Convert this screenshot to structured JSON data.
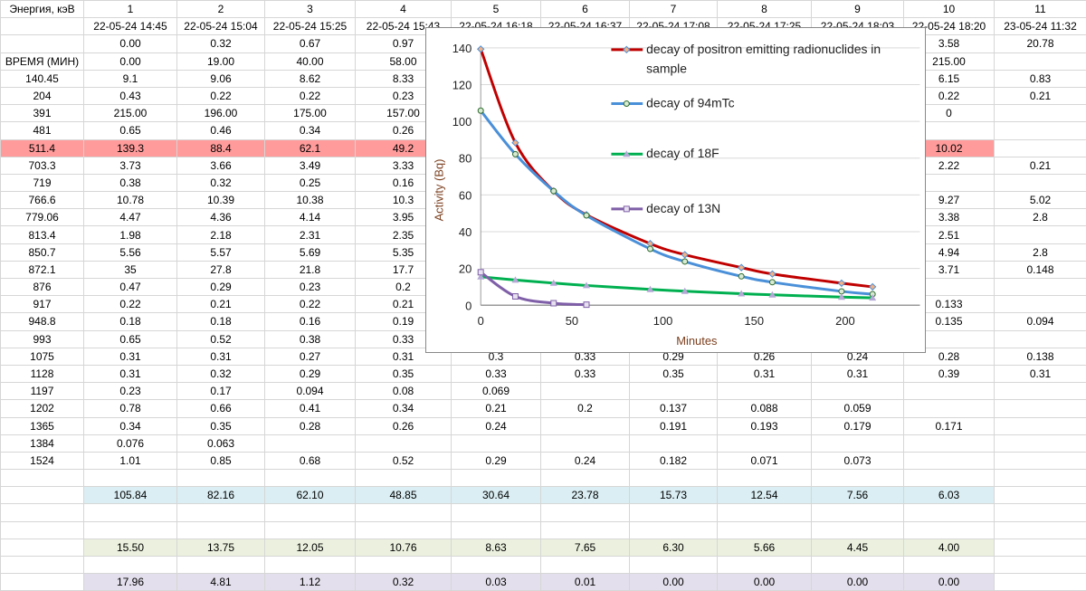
{
  "sheet": {
    "header": [
      "Энергия, кэВ",
      "1",
      "2",
      "3",
      "4",
      "5",
      "6",
      "7",
      "8",
      "9",
      "10",
      "11"
    ],
    "rows": [
      {
        "cls": "",
        "cells": [
          "",
          "22-05-24 14:45",
          "22-05-24 15:04",
          "22-05-24 15:25",
          "22-05-24 15:43",
          "22-05-24 16:18",
          "22-05-24 16:37",
          "22-05-24 17:08",
          "22-05-24 17:25",
          "22-05-24 18:03",
          "22-05-24 18:20",
          "23-05-24 11:32"
        ]
      },
      {
        "cls": "",
        "cells": [
          "",
          "0.00",
          "0.32",
          "0.67",
          "0.97",
          "",
          "",
          "",
          "",
          "",
          "3.58",
          "20.78"
        ]
      },
      {
        "cls": "",
        "cells": [
          "ВРЕМЯ (МИН)",
          "0.00",
          "19.00",
          "40.00",
          "58.00",
          "",
          "",
          "",
          "",
          "",
          "215.00",
          ""
        ]
      },
      {
        "cls": "",
        "cells": [
          "140.45",
          "9.1",
          "9.06",
          "8.62",
          "8.33",
          "",
          "",
          "",
          "",
          "",
          "6.15",
          "0.83"
        ]
      },
      {
        "cls": "",
        "cells": [
          "204",
          "0.43",
          "0.22",
          "0.22",
          "0.23",
          "",
          "",
          "",
          "",
          "",
          "0.22",
          "0.21"
        ]
      },
      {
        "cls": "",
        "cells": [
          "391",
          "215.00",
          "196.00",
          "175.00",
          "157.00",
          "",
          "",
          "",
          "",
          "",
          "0",
          ""
        ]
      },
      {
        "cls": "",
        "cells": [
          "481",
          "0.65",
          "0.46",
          "0.34",
          "0.26",
          "",
          "",
          "",
          "",
          "",
          "",
          ""
        ]
      },
      {
        "cls": "pink",
        "cells": [
          "511.4",
          "139.3",
          "88.4",
          "62.1",
          "49.2",
          "",
          "",
          "",
          "",
          "",
          "10.02",
          ""
        ]
      },
      {
        "cls": "",
        "cells": [
          "703.3",
          "3.73",
          "3.66",
          "3.49",
          "3.33",
          "",
          "",
          "",
          "",
          "",
          "2.22",
          "0.21"
        ]
      },
      {
        "cls": "",
        "cells": [
          "719",
          "0.38",
          "0.32",
          "0.25",
          "0.16",
          "",
          "",
          "",
          "",
          "",
          "",
          ""
        ]
      },
      {
        "cls": "",
        "cells": [
          "766.6",
          "10.78",
          "10.39",
          "10.38",
          "10.3",
          "",
          "",
          "",
          "",
          "",
          "9.27",
          "5.02"
        ]
      },
      {
        "cls": "",
        "cells": [
          "779.06",
          "4.47",
          "4.36",
          "4.14",
          "3.95",
          "",
          "",
          "",
          "",
          "",
          "3.38",
          "2.8"
        ]
      },
      {
        "cls": "",
        "cells": [
          "813.4",
          "1.98",
          "2.18",
          "2.31",
          "2.35",
          "",
          "",
          "",
          "",
          "",
          "2.51",
          ""
        ]
      },
      {
        "cls": "",
        "cells": [
          "850.7",
          "5.56",
          "5.57",
          "5.69",
          "5.35",
          "",
          "",
          "",
          "",
          "",
          "4.94",
          "2.8"
        ]
      },
      {
        "cls": "",
        "cells": [
          "872.1",
          "35",
          "27.8",
          "21.8",
          "17.7",
          "",
          "",
          "",
          "",
          "",
          "3.71",
          "0.148"
        ]
      },
      {
        "cls": "",
        "cells": [
          "876",
          "0.47",
          "0.29",
          "0.23",
          "0.2",
          "",
          "",
          "",
          "",
          "",
          "",
          ""
        ]
      },
      {
        "cls": "",
        "cells": [
          "917",
          "0.22",
          "0.21",
          "0.22",
          "0.21",
          "",
          "",
          "",
          "",
          "",
          "0.133",
          ""
        ]
      },
      {
        "cls": "",
        "cells": [
          "948.8",
          "0.18",
          "0.18",
          "0.16",
          "0.19",
          "",
          "",
          "",
          "",
          "",
          "0.135",
          "0.094"
        ]
      },
      {
        "cls": "",
        "cells": [
          "993",
          "0.65",
          "0.52",
          "0.38",
          "0.33",
          "",
          "",
          "",
          "",
          "",
          "",
          ""
        ]
      },
      {
        "cls": "",
        "cells": [
          "1075",
          "0.31",
          "0.31",
          "0.27",
          "0.31",
          "0.3",
          "0.33",
          "0.29",
          "0.26",
          "0.24",
          "0.28",
          "0.138"
        ]
      },
      {
        "cls": "",
        "cells": [
          "1128",
          "0.31",
          "0.32",
          "0.29",
          "0.35",
          "0.33",
          "0.33",
          "0.35",
          "0.31",
          "0.31",
          "0.39",
          "0.31"
        ]
      },
      {
        "cls": "",
        "cells": [
          "1197",
          "0.23",
          "0.17",
          "0.094",
          "0.08",
          "0.069",
          "",
          "",
          "",
          "",
          "",
          ""
        ]
      },
      {
        "cls": "",
        "cells": [
          "1202",
          "0.78",
          "0.66",
          "0.41",
          "0.34",
          "0.21",
          "0.2",
          "0.137",
          "0.088",
          "0.059",
          "",
          ""
        ]
      },
      {
        "cls": "",
        "cells": [
          "1365",
          "0.34",
          "0.35",
          "0.28",
          "0.26",
          "0.24",
          "",
          "0.191",
          "0.193",
          "0.179",
          "0.171",
          ""
        ]
      },
      {
        "cls": "",
        "cells": [
          "1384",
          "0.076",
          "0.063",
          "",
          "",
          "",
          "",
          "",
          "",
          "",
          "",
          ""
        ]
      },
      {
        "cls": "",
        "cells": [
          "1524",
          "1.01",
          "0.85",
          "0.68",
          "0.52",
          "0.29",
          "0.24",
          "0.182",
          "0.071",
          "0.073",
          "",
          ""
        ]
      },
      {
        "cls": "",
        "cells": [
          "",
          "",
          "",
          "",
          "",
          "",
          "",
          "",
          "",
          "",
          "",
          ""
        ]
      },
      {
        "cls": "blue",
        "cells": [
          "",
          "105.84",
          "82.16",
          "62.10",
          "48.85",
          "30.64",
          "23.78",
          "15.73",
          "12.54",
          "7.56",
          "6.03",
          ""
        ]
      },
      {
        "cls": "",
        "cells": [
          "",
          "",
          "",
          "",
          "",
          "",
          "",
          "",
          "",
          "",
          "",
          ""
        ]
      },
      {
        "cls": "",
        "cells": [
          "",
          "",
          "",
          "",
          "",
          "",
          "",
          "",
          "",
          "",
          "",
          ""
        ]
      },
      {
        "cls": "green",
        "cells": [
          "",
          "15.50",
          "13.75",
          "12.05",
          "10.76",
          "8.63",
          "7.65",
          "6.30",
          "5.66",
          "4.45",
          "4.00",
          ""
        ]
      },
      {
        "cls": "",
        "cells": [
          "",
          "",
          "",
          "",
          "",
          "",
          "",
          "",
          "",
          "",
          "",
          ""
        ]
      },
      {
        "cls": "purple",
        "cells": [
          "",
          "17.96",
          "4.81",
          "1.12",
          "0.32",
          "0.03",
          "0.01",
          "0.00",
          "0.00",
          "0.00",
          "0.00",
          ""
        ]
      }
    ]
  },
  "chart_data": {
    "type": "line",
    "xlabel": "Minutes",
    "ylabel": "Activity (Bq)",
    "xlim": [
      0,
      240
    ],
    "ylim": [
      0,
      140
    ],
    "xticks": [
      "0",
      "50",
      "100",
      "150",
      "200"
    ],
    "yticks": [
      "0",
      "20",
      "40",
      "60",
      "80",
      "100",
      "120",
      "140"
    ],
    "grid": true,
    "legend_position": "right",
    "series": [
      {
        "name": "decay of positron emitting radionuclides in sample",
        "legend_lines": [
          "decay of positron emitting radionuclides in",
          "sample"
        ],
        "color": "#c00000",
        "marker": "diamond",
        "x": [
          0,
          19,
          40,
          58,
          93,
          112,
          143,
          160,
          198,
          215
        ],
        "y": [
          139.3,
          88.4,
          62.1,
          49.2,
          33.5,
          27.5,
          20.5,
          17.0,
          12.0,
          10.02
        ]
      },
      {
        "name": "decay of 94mTc",
        "legend_lines": [
          "decay of 94mTc"
        ],
        "color": "#4a90d9",
        "marker": "circle",
        "x": [
          0,
          19,
          40,
          58,
          93,
          112,
          143,
          160,
          198,
          215
        ],
        "y": [
          105.84,
          82.16,
          62.1,
          48.85,
          30.64,
          23.78,
          15.73,
          12.54,
          7.56,
          6.03
        ]
      },
      {
        "name": "decay of 18F",
        "legend_lines": [
          "decay of 18F"
        ],
        "color": "#00b050",
        "marker": "triangle",
        "x": [
          0,
          19,
          40,
          58,
          93,
          112,
          143,
          160,
          198,
          215
        ],
        "y": [
          15.5,
          13.75,
          12.05,
          10.76,
          8.63,
          7.65,
          6.3,
          5.66,
          4.45,
          4.0
        ]
      },
      {
        "name": "decay of 13N",
        "legend_lines": [
          "decay of 13N"
        ],
        "color": "#7f5fa8",
        "marker": "square",
        "x": [
          0,
          19,
          40,
          58
        ],
        "y": [
          17.96,
          4.81,
          1.12,
          0.32
        ]
      }
    ]
  }
}
